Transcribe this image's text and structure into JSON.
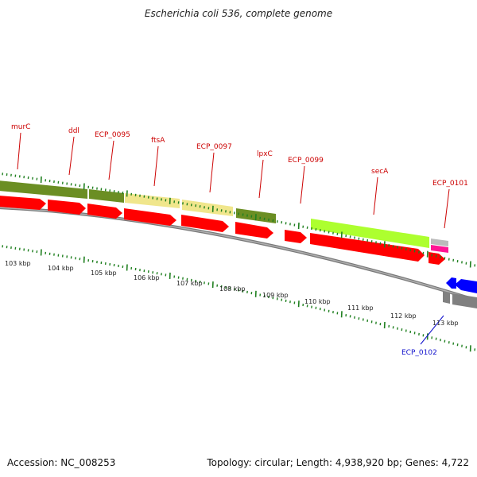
{
  "title": "Escherichia coli 536, complete genome",
  "footer": {
    "accession": "Accession: NC_008253",
    "summary": "Topology: circular; Length: 4,938,920 bp; Genes: 4,722"
  },
  "colors": {
    "label_forward": "#cc0000",
    "label_reverse": "#1010cc",
    "cds_red": "#ff0000",
    "cds_blue": "#0000ff",
    "tick_green": "#208020",
    "backbone": "#888888",
    "olive": "#6b8e23",
    "khaki": "#f0e68c",
    "lime": "#adff2f",
    "pink": "#ff1493",
    "gray": "#808080"
  },
  "gene_labels": [
    {
      "text": "murC",
      "color_key": "label_forward"
    },
    {
      "text": "ddl",
      "color_key": "label_forward"
    },
    {
      "text": "ECP_0095",
      "color_key": "label_forward"
    },
    {
      "text": "ftsA",
      "color_key": "label_forward"
    },
    {
      "text": "ECP_0097",
      "color_key": "label_forward"
    },
    {
      "text": "lpxC",
      "color_key": "label_forward"
    },
    {
      "text": "ECP_0099",
      "color_key": "label_forward"
    },
    {
      "text": "secA",
      "color_key": "label_forward"
    },
    {
      "text": "ECP_0101",
      "color_key": "label_forward"
    },
    {
      "text": "ECP_0102",
      "color_key": "label_reverse"
    }
  ],
  "kbp_labels": [
    "103 kbp",
    "104 kbp",
    "105 kbp",
    "106 kbp",
    "107 kbp",
    "108 kbp",
    "109 kbp",
    "110 kbp",
    "111 kbp",
    "112 kbp",
    "113 kbp"
  ]
}
